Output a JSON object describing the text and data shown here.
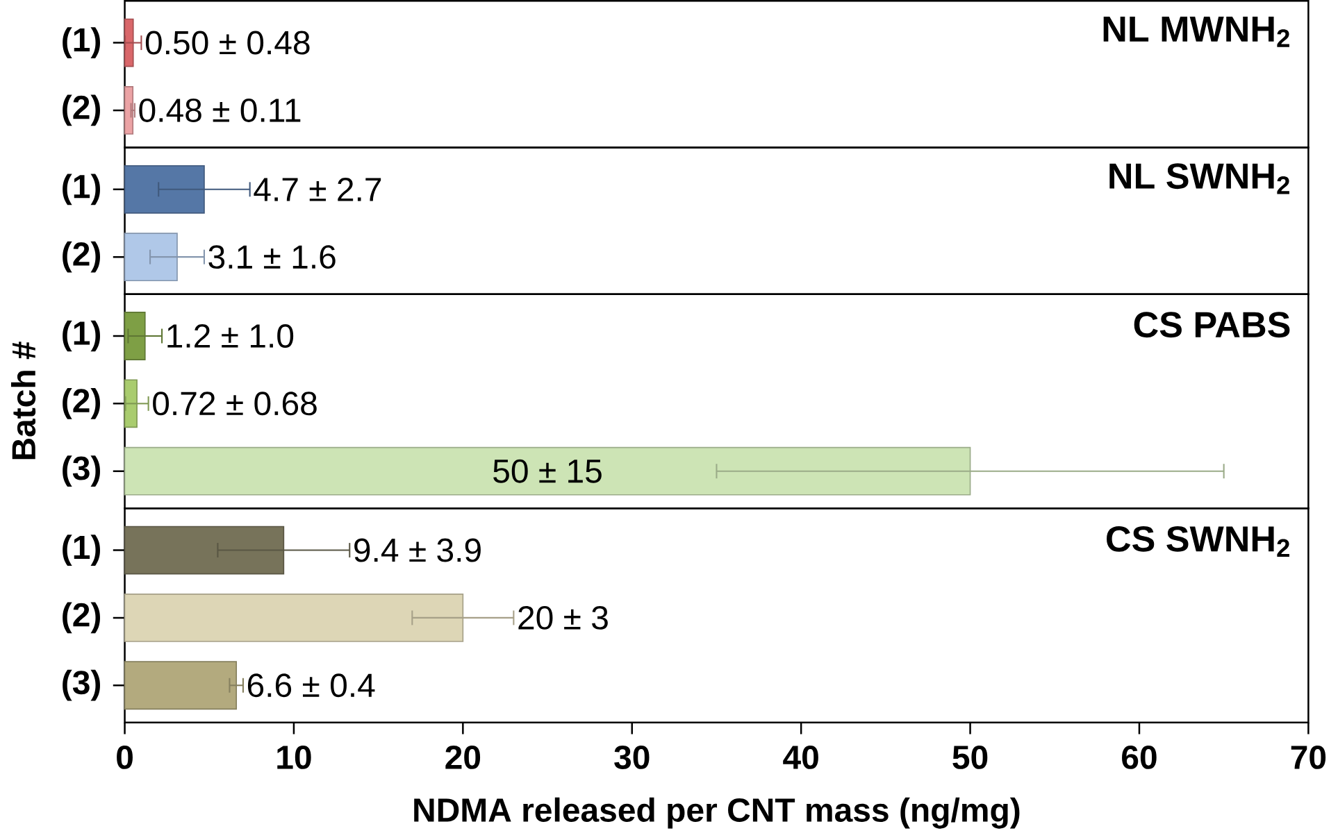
{
  "chart_data": [
    {
      "type": "bar",
      "orientation": "horizontal",
      "categories": [
        "(1)",
        "(2)"
      ],
      "values": [
        0.5,
        0.48
      ],
      "errors": [
        0.48,
        0.11
      ],
      "colors": [
        "#d9676a",
        "#eba3a5"
      ],
      "value_labels": [
        "0.50 ± 0.48",
        "0.48 ± 0.11"
      ],
      "annotations": [
        "NL MWNH$_{2}$"
      ],
      "xlim": [
        0,
        70
      ],
      "tick_labels": "y"
    },
    {
      "type": "bar",
      "orientation": "horizontal",
      "categories": [
        "(1)",
        "(2)"
      ],
      "values": [
        4.7,
        3.1
      ],
      "errors": [
        2.7,
        1.6
      ],
      "colors": [
        "#5577a6",
        "#b0c8e8"
      ],
      "value_labels": [
        "4.7 ± 2.7",
        "3.1 ± 1.6"
      ],
      "annotations": [
        "NL SWNH$_{2}$"
      ],
      "xlim": [
        0,
        70
      ],
      "tick_labels": "y"
    },
    {
      "type": "bar",
      "orientation": "horizontal",
      "categories": [
        "(1)",
        "(2)",
        "(3)"
      ],
      "values": [
        1.2,
        0.72,
        50
      ],
      "errors": [
        1.0,
        0.68,
        15
      ],
      "colors": [
        "#7e9f45",
        "#a9cc6e",
        "#cde4b5"
      ],
      "value_labels": [
        "1.2 ± 1.0",
        "0.72 ± 0.68",
        "50 ± 15"
      ],
      "annotations": [
        "CS PABS"
      ],
      "ylabel": "Batch #",
      "xlim": [
        0,
        70
      ],
      "tick_labels": "y"
    },
    {
      "type": "bar",
      "orientation": "horizontal",
      "categories": [
        "(1)",
        "(2)",
        "(3)"
      ],
      "values": [
        9.4,
        20,
        6.6
      ],
      "errors": [
        3.9,
        3,
        0.4
      ],
      "colors": [
        "#77735a",
        "#ddd6b6",
        "#b3aa7e"
      ],
      "value_labels": [
        "9.4 ± 3.9",
        "20 ± 3",
        "6.6 ± 0.4"
      ],
      "annotations": [
        "CS SWNH$_{2}$"
      ],
      "xlabel": "NDMA released per CNT mass (ng/mg)",
      "xlim": [
        0,
        70
      ],
      "xticks": [
        0,
        10,
        20,
        30,
        40,
        50,
        60,
        70
      ]
    }
  ]
}
